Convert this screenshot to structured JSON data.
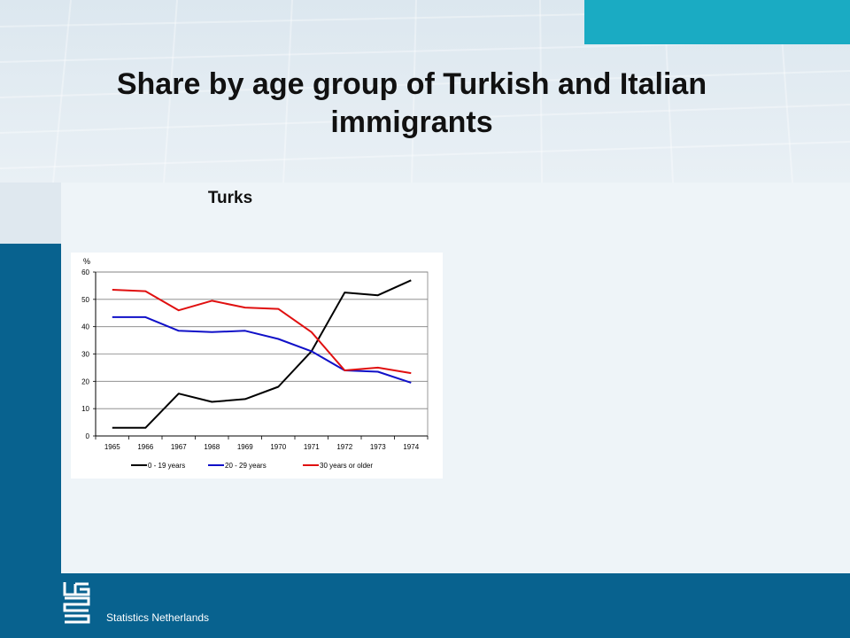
{
  "slide": {
    "title": "Share by age group of Turkish and Italian immigrants",
    "subtitle": "Turks",
    "footer": "Statistics Netherlands"
  },
  "colors": {
    "brand_blue": "#08628f",
    "accent_teal": "#1aabc3",
    "series_black": "#000000",
    "series_blue": "#1010c8",
    "series_red": "#e01010"
  },
  "chart_data": {
    "type": "line",
    "title": "",
    "ylabel": "%",
    "xlabel": "",
    "ylim": [
      0,
      60
    ],
    "yticks": [
      0,
      10,
      20,
      30,
      40,
      50,
      60
    ],
    "grid": true,
    "legend_position": "bottom",
    "x": [
      "1965",
      "1966",
      "1967",
      "1968",
      "1969",
      "1970",
      "1971",
      "1972",
      "1973",
      "1974"
    ],
    "series": [
      {
        "name": "0 - 19 years",
        "color": "#000000",
        "values": [
          3,
          3,
          15.5,
          12.5,
          13.5,
          18,
          31,
          52.5,
          51.5,
          57
        ]
      },
      {
        "name": "20 - 29  years",
        "color": "#1010c8",
        "values": [
          43.5,
          43.5,
          38.5,
          38,
          38.5,
          35.5,
          31,
          24,
          23.5,
          19.5
        ]
      },
      {
        "name": "30 years or older",
        "color": "#e01010",
        "values": [
          53.5,
          53,
          46,
          49.5,
          47,
          46.5,
          38,
          24,
          25,
          23
        ]
      }
    ]
  }
}
